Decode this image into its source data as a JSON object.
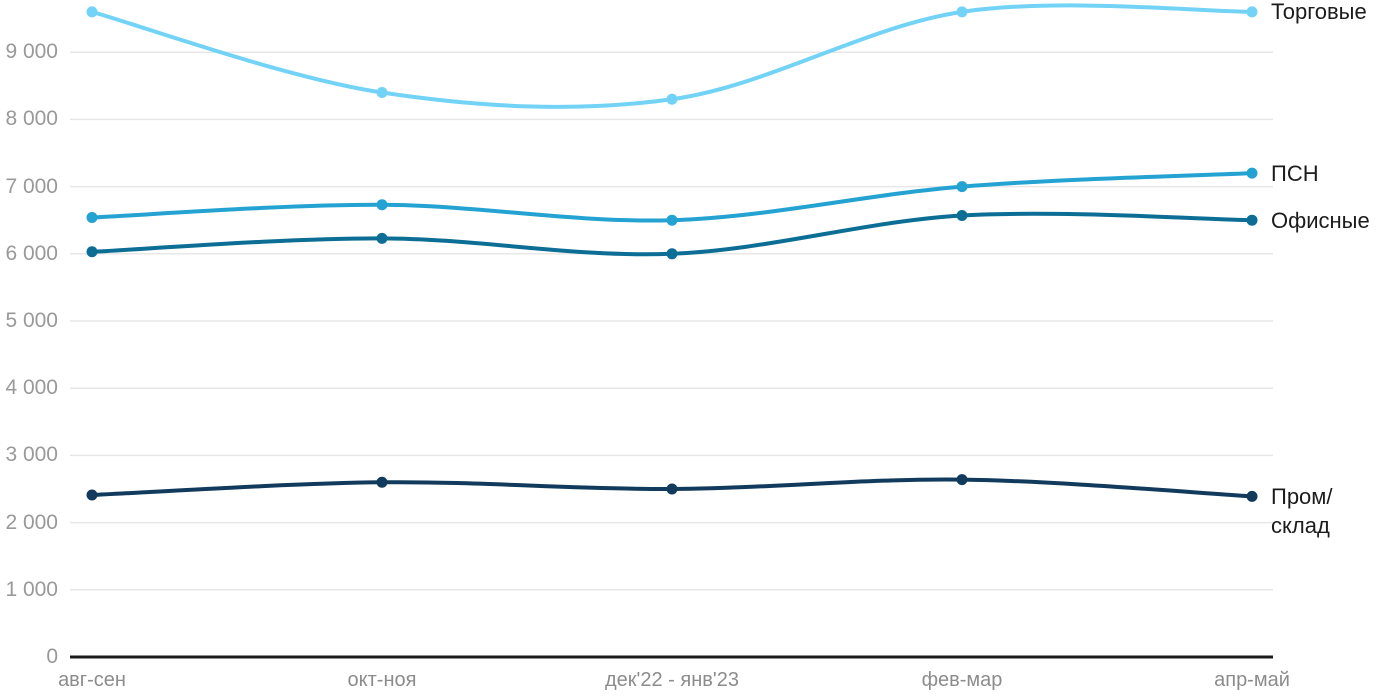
{
  "chart_data": {
    "type": "line",
    "title": "",
    "xlabel": "",
    "ylabel": "",
    "categories": [
      "авг-сен",
      "окт-ноя",
      "дек'22 - янв'23",
      "фев-мар",
      "апр-май"
    ],
    "series": [
      {
        "name": "Торговые",
        "color": "#72D3F6",
        "values": [
          9600,
          8400,
          8300,
          9600,
          9600
        ],
        "label_lines": [
          "Торговые"
        ]
      },
      {
        "name": "ПСН",
        "color": "#24A2D2",
        "values": [
          6540,
          6730,
          6500,
          7000,
          7200
        ],
        "label_lines": [
          "ПСН"
        ]
      },
      {
        "name": "Офисные",
        "color": "#0C6D95",
        "values": [
          6030,
          6230,
          6000,
          6570,
          6500
        ],
        "label_lines": [
          "Офисные"
        ]
      },
      {
        "name": "Пром/склад",
        "color": "#113A5C",
        "values": [
          2410,
          2600,
          2500,
          2640,
          2390
        ],
        "label_lines": [
          "Пром/",
          "склад"
        ]
      }
    ],
    "y_ticks": [
      0,
      1000,
      2000,
      3000,
      4000,
      5000,
      6000,
      7000,
      8000,
      9000
    ],
    "y_tick_labels": [
      "0",
      "1 000",
      "2 000",
      "3 000",
      "4 000",
      "5 000",
      "6 000",
      "7 000",
      "8 000",
      "9 000"
    ],
    "ylim": [
      0,
      9777
    ],
    "grid": "horizontal",
    "legend_position": "right-of-line-ends",
    "style": {
      "background": "#ffffff",
      "grid_color": "#e7e7e7",
      "axis_color": "#1a1a1a",
      "y_tick_color": "#999999",
      "x_tick_color": "#8c8c8c",
      "series_label_color": "#1c1c1c"
    }
  }
}
